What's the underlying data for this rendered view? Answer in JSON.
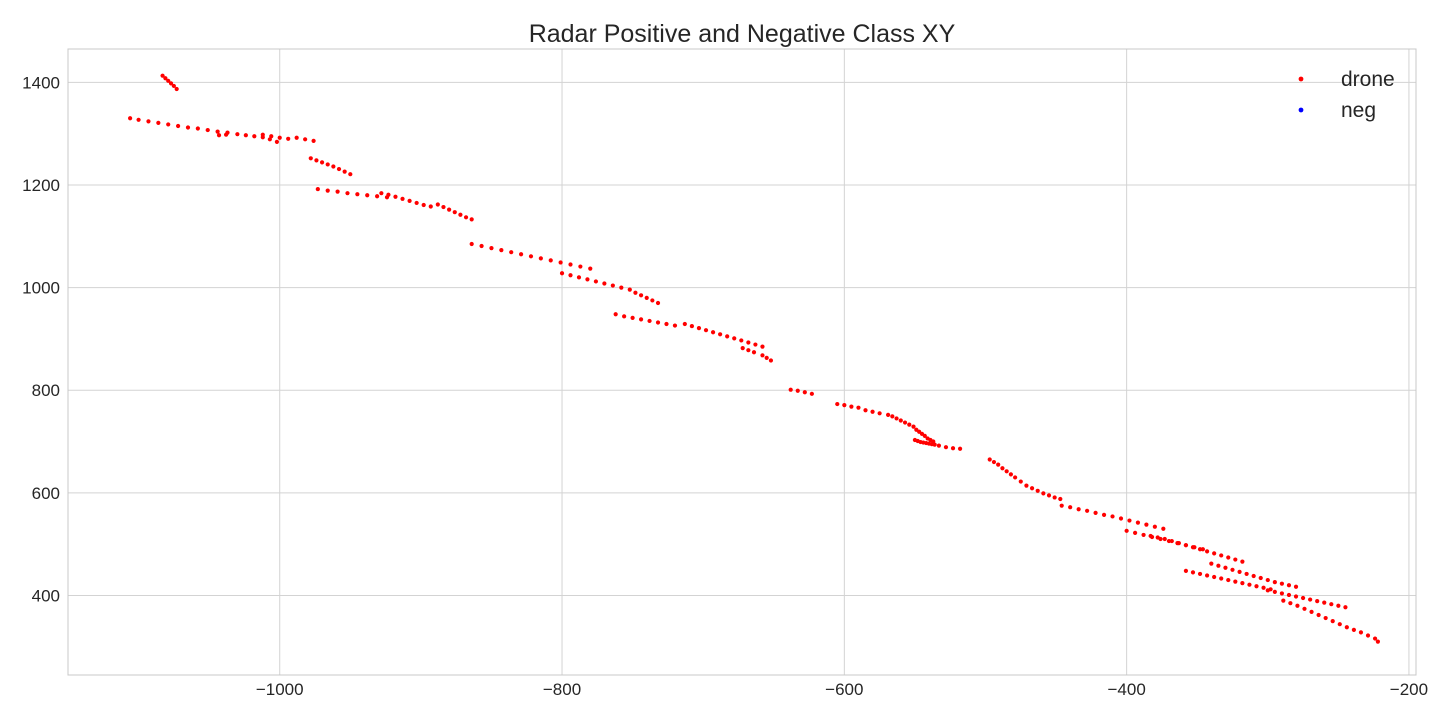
{
  "chart_data": {
    "type": "scatter",
    "title": "Radar Positive and Negative Class XY",
    "xlabel": "",
    "ylabel": "",
    "xlim": [
      -1150,
      -195
    ],
    "ylim": [
      245,
      1465
    ],
    "xticks": [
      -1000,
      -800,
      -600,
      -400,
      -200
    ],
    "xtick_labels": [
      "−1000",
      "−800",
      "−600",
      "−400",
      "−200"
    ],
    "yticks": [
      400,
      600,
      800,
      1000,
      1200,
      1400
    ],
    "ytick_labels": [
      "400",
      "600",
      "800",
      "1000",
      "1200",
      "1400"
    ],
    "grid": true,
    "legend_position": "top-right",
    "colors": {
      "drone": "#ff0000",
      "neg": "#0000ff"
    },
    "series": [
      {
        "name": "drone",
        "color": "#ff0000",
        "points": [
          [
            -1083,
            1413
          ],
          [
            -1081,
            1408
          ],
          [
            -1079,
            1403
          ],
          [
            -1077,
            1398
          ],
          [
            -1075,
            1393
          ],
          [
            -1073,
            1387
          ],
          [
            -1106,
            1330
          ],
          [
            -1100,
            1327
          ],
          [
            -1093,
            1324
          ],
          [
            -1086,
            1321
          ],
          [
            -1079,
            1318
          ],
          [
            -1072,
            1315
          ],
          [
            -1065,
            1312
          ],
          [
            -1058,
            1310
          ],
          [
            -1051,
            1307
          ],
          [
            -1044,
            1304
          ],
          [
            -1037,
            1302
          ],
          [
            -1030,
            1299
          ],
          [
            -1024,
            1297
          ],
          [
            -1018,
            1295
          ],
          [
            -1012,
            1298
          ],
          [
            -1006,
            1295
          ],
          [
            -1000,
            1292
          ],
          [
            -994,
            1290
          ],
          [
            -988,
            1292
          ],
          [
            -982,
            1289
          ],
          [
            -976,
            1286
          ],
          [
            -1038,
            1298
          ],
          [
            -1043,
            1297
          ],
          [
            -1012,
            1293
          ],
          [
            -1007,
            1289
          ],
          [
            -1002,
            1284
          ],
          [
            -978,
            1252
          ],
          [
            -974,
            1248
          ],
          [
            -970,
            1244
          ],
          [
            -966,
            1240
          ],
          [
            -962,
            1236
          ],
          [
            -958,
            1231
          ],
          [
            -954,
            1226
          ],
          [
            -950,
            1221
          ],
          [
            -973,
            1192
          ],
          [
            -966,
            1189
          ],
          [
            -959,
            1187
          ],
          [
            -952,
            1184
          ],
          [
            -945,
            1182
          ],
          [
            -938,
            1180
          ],
          [
            -931,
            1178
          ],
          [
            -924,
            1176
          ],
          [
            -928,
            1184
          ],
          [
            -923,
            1181
          ],
          [
            -918,
            1177
          ],
          [
            -913,
            1173
          ],
          [
            -908,
            1169
          ],
          [
            -903,
            1165
          ],
          [
            -898,
            1161
          ],
          [
            -893,
            1158
          ],
          [
            -888,
            1162
          ],
          [
            -884,
            1157
          ],
          [
            -880,
            1152
          ],
          [
            -876,
            1147
          ],
          [
            -872,
            1142
          ],
          [
            -868,
            1137
          ],
          [
            -864,
            1133
          ],
          [
            -864,
            1085
          ],
          [
            -857,
            1081
          ],
          [
            -850,
            1077
          ],
          [
            -843,
            1073
          ],
          [
            -836,
            1069
          ],
          [
            -829,
            1065
          ],
          [
            -822,
            1061
          ],
          [
            -815,
            1057
          ],
          [
            -808,
            1053
          ],
          [
            -801,
            1049
          ],
          [
            -794,
            1045
          ],
          [
            -787,
            1041
          ],
          [
            -780,
            1037
          ],
          [
            -800,
            1028
          ],
          [
            -794,
            1024
          ],
          [
            -788,
            1020
          ],
          [
            -782,
            1016
          ],
          [
            -776,
            1012
          ],
          [
            -770,
            1008
          ],
          [
            -764,
            1004
          ],
          [
            -758,
            1000
          ],
          [
            -752,
            996
          ],
          [
            -748,
            990
          ],
          [
            -744,
            985
          ],
          [
            -740,
            980
          ],
          [
            -736,
            975
          ],
          [
            -732,
            970
          ],
          [
            -762,
            948
          ],
          [
            -756,
            944
          ],
          [
            -750,
            941
          ],
          [
            -744,
            938
          ],
          [
            -738,
            935
          ],
          [
            -732,
            932
          ],
          [
            -726,
            929
          ],
          [
            -720,
            926
          ],
          [
            -713,
            929
          ],
          [
            -708,
            925
          ],
          [
            -703,
            921
          ],
          [
            -698,
            917
          ],
          [
            -693,
            913
          ],
          [
            -688,
            909
          ],
          [
            -683,
            905
          ],
          [
            -678,
            901
          ],
          [
            -673,
            897
          ],
          [
            -668,
            893
          ],
          [
            -663,
            889
          ],
          [
            -658,
            885
          ],
          [
            -672,
            882
          ],
          [
            -668,
            878
          ],
          [
            -664,
            874
          ],
          [
            -658,
            868
          ],
          [
            -655,
            863
          ],
          [
            -652,
            858
          ],
          [
            -638,
            801
          ],
          [
            -633,
            799
          ],
          [
            -628,
            796
          ],
          [
            -623,
            793
          ],
          [
            -605,
            773
          ],
          [
            -600,
            771
          ],
          [
            -595,
            768
          ],
          [
            -590,
            766
          ],
          [
            -585,
            761
          ],
          [
            -580,
            758
          ],
          [
            -575,
            755
          ],
          [
            -569,
            752
          ],
          [
            -566,
            749
          ],
          [
            -563,
            745
          ],
          [
            -560,
            741
          ],
          [
            -557,
            737
          ],
          [
            -554,
            733
          ],
          [
            -551,
            729
          ],
          [
            -549,
            723
          ],
          [
            -547,
            719
          ],
          [
            -545,
            715
          ],
          [
            -543,
            711
          ],
          [
            -541,
            706
          ],
          [
            -539,
            703
          ],
          [
            -537,
            700
          ],
          [
            -550,
            703
          ],
          [
            -548,
            701
          ],
          [
            -546,
            699
          ],
          [
            -544,
            698
          ],
          [
            -542,
            697
          ],
          [
            -540,
            696
          ],
          [
            -538,
            695
          ],
          [
            -536,
            694
          ],
          [
            -533,
            692
          ],
          [
            -528,
            689
          ],
          [
            -523,
            687
          ],
          [
            -518,
            686
          ],
          [
            -497,
            665
          ],
          [
            -494,
            660
          ],
          [
            -491,
            655
          ],
          [
            -488,
            648
          ],
          [
            -485,
            642
          ],
          [
            -482,
            636
          ],
          [
            -479,
            630
          ],
          [
            -475,
            622
          ],
          [
            -471,
            614
          ],
          [
            -467,
            609
          ],
          [
            -463,
            604
          ],
          [
            -459,
            599
          ],
          [
            -455,
            595
          ],
          [
            -451,
            591
          ],
          [
            -447,
            588
          ],
          [
            -446,
            575
          ],
          [
            -440,
            572
          ],
          [
            -434,
            568
          ],
          [
            -428,
            565
          ],
          [
            -422,
            561
          ],
          [
            -416,
            557
          ],
          [
            -410,
            554
          ],
          [
            -404,
            550
          ],
          [
            -398,
            546
          ],
          [
            -392,
            542
          ],
          [
            -386,
            538
          ],
          [
            -380,
            534
          ],
          [
            -374,
            530
          ],
          [
            -400,
            526
          ],
          [
            -394,
            522
          ],
          [
            -388,
            518
          ],
          [
            -382,
            514
          ],
          [
            -376,
            510
          ],
          [
            -370,
            506
          ],
          [
            -364,
            502
          ],
          [
            -358,
            498
          ],
          [
            -352,
            494
          ],
          [
            -346,
            490
          ],
          [
            -383,
            516
          ],
          [
            -378,
            513
          ],
          [
            -373,
            510
          ],
          [
            -368,
            506
          ],
          [
            -363,
            502
          ],
          [
            -358,
            498
          ],
          [
            -353,
            494
          ],
          [
            -348,
            490
          ],
          [
            -343,
            486
          ],
          [
            -338,
            482
          ],
          [
            -333,
            478
          ],
          [
            -328,
            474
          ],
          [
            -323,
            470
          ],
          [
            -318,
            466
          ],
          [
            -340,
            462
          ],
          [
            -335,
            458
          ],
          [
            -330,
            454
          ],
          [
            -325,
            450
          ],
          [
            -320,
            446
          ],
          [
            -315,
            442
          ],
          [
            -310,
            438
          ],
          [
            -305,
            434
          ],
          [
            -300,
            430
          ],
          [
            -295,
            426
          ],
          [
            -290,
            423
          ],
          [
            -285,
            420
          ],
          [
            -280,
            417
          ],
          [
            -358,
            448
          ],
          [
            -353,
            445
          ],
          [
            -348,
            442
          ],
          [
            -343,
            439
          ],
          [
            -338,
            436
          ],
          [
            -333,
            433
          ],
          [
            -328,
            430
          ],
          [
            -323,
            427
          ],
          [
            -318,
            424
          ],
          [
            -313,
            421
          ],
          [
            -308,
            418
          ],
          [
            -303,
            415
          ],
          [
            -298,
            412
          ],
          [
            -300,
            410
          ],
          [
            -295,
            407
          ],
          [
            -290,
            404
          ],
          [
            -285,
            401
          ],
          [
            -280,
            398
          ],
          [
            -275,
            395
          ],
          [
            -270,
            392
          ],
          [
            -265,
            389
          ],
          [
            -260,
            386
          ],
          [
            -255,
            383
          ],
          [
            -250,
            380
          ],
          [
            -245,
            377
          ],
          [
            -289,
            390
          ],
          [
            -284,
            385
          ],
          [
            -279,
            380
          ],
          [
            -274,
            374
          ],
          [
            -269,
            368
          ],
          [
            -264,
            362
          ],
          [
            -259,
            356
          ],
          [
            -254,
            350
          ],
          [
            -249,
            344
          ],
          [
            -244,
            338
          ],
          [
            -239,
            333
          ],
          [
            -234,
            328
          ],
          [
            -229,
            322
          ],
          [
            -224,
            316
          ],
          [
            -222,
            310
          ]
        ]
      },
      {
        "name": "neg",
        "color": "#0000ff",
        "points": []
      }
    ]
  }
}
